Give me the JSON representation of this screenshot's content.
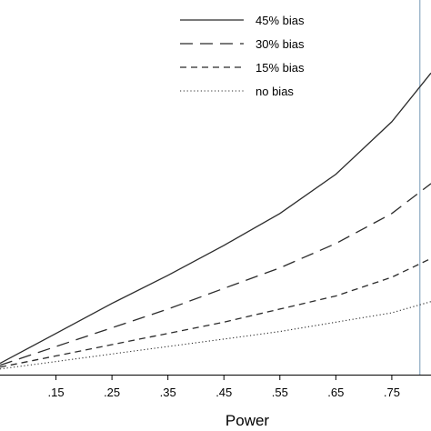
{
  "chart_data": {
    "type": "line",
    "xlabel": "Power",
    "x_ticks": [
      0.15,
      0.25,
      0.35,
      0.45,
      0.55,
      0.65,
      0.75
    ],
    "x_tick_labels": [
      ".15",
      ".25",
      ".35",
      ".45",
      ".55",
      ".65",
      ".75"
    ],
    "xlim": [
      0.05,
      0.82
    ],
    "ylim": [
      0,
      1
    ],
    "reference_line_x": 0.8,
    "legend_position": "top-right",
    "series": [
      {
        "name": "45% bias",
        "style": "solid",
        "x": [
          0.05,
          0.15,
          0.25,
          0.35,
          0.45,
          0.55,
          0.65,
          0.75,
          0.82
        ],
        "y": [
          0.03,
          0.11,
          0.19,
          0.265,
          0.345,
          0.43,
          0.535,
          0.675,
          0.805
        ]
      },
      {
        "name": "30% bias",
        "style": "longdash",
        "x": [
          0.05,
          0.15,
          0.25,
          0.35,
          0.45,
          0.55,
          0.65,
          0.75,
          0.82
        ],
        "y": [
          0.025,
          0.075,
          0.125,
          0.175,
          0.23,
          0.285,
          0.35,
          0.43,
          0.51
        ]
      },
      {
        "name": "15% bias",
        "style": "dash",
        "x": [
          0.05,
          0.15,
          0.25,
          0.35,
          0.45,
          0.55,
          0.65,
          0.75,
          0.82
        ],
        "y": [
          0.02,
          0.05,
          0.08,
          0.11,
          0.14,
          0.175,
          0.21,
          0.26,
          0.31
        ]
      },
      {
        "name": "no bias",
        "style": "dot",
        "x": [
          0.05,
          0.15,
          0.25,
          0.35,
          0.45,
          0.55,
          0.65,
          0.75,
          0.82
        ],
        "y": [
          0.015,
          0.035,
          0.055,
          0.075,
          0.095,
          0.115,
          0.14,
          0.165,
          0.195
        ]
      }
    ],
    "colors": {
      "series": "#2b2b2b",
      "reference_line": "#9fb7cc",
      "axis": "#000000"
    }
  }
}
